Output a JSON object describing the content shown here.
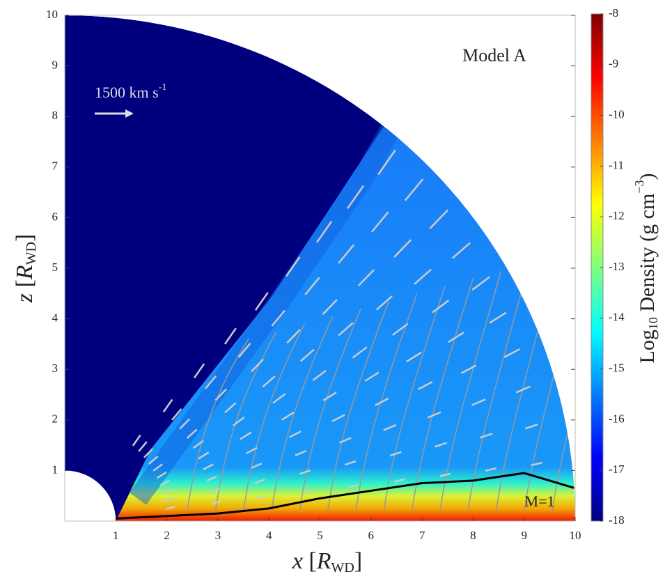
{
  "chart_data": {
    "type": "heatmap",
    "annotations": [
      "Model A",
      "M=1"
    ],
    "arrow_label": [
      "1500 km s",
      "-1"
    ],
    "xlabel": [
      "x",
      " [",
      "R",
      "WD",
      "]"
    ],
    "ylabel": [
      "z",
      " [",
      "R",
      "WD",
      "]"
    ],
    "colorbar_label": [
      "Log",
      "10",
      " Density (g cm",
      "−3",
      ")"
    ],
    "xlim": [
      0,
      10
    ],
    "xticks": [
      1,
      2,
      3,
      4,
      5,
      6,
      7,
      8,
      9,
      10
    ],
    "ylim": [
      0,
      10
    ],
    "yticks": [
      1,
      2,
      3,
      4,
      5,
      6,
      7,
      8,
      9,
      10
    ],
    "clim": [
      -18,
      -8
    ],
    "cticks": [
      -8,
      -9,
      -10,
      -11,
      -12,
      -13,
      -14,
      -15,
      -16,
      -17,
      -18
    ],
    "colormap": [
      "#00007f",
      "#0000ff",
      "#007fff",
      "#00ffff",
      "#7fff7f",
      "#ffff00",
      "#ff7f00",
      "#ff0000",
      "#7f0000"
    ]
  }
}
